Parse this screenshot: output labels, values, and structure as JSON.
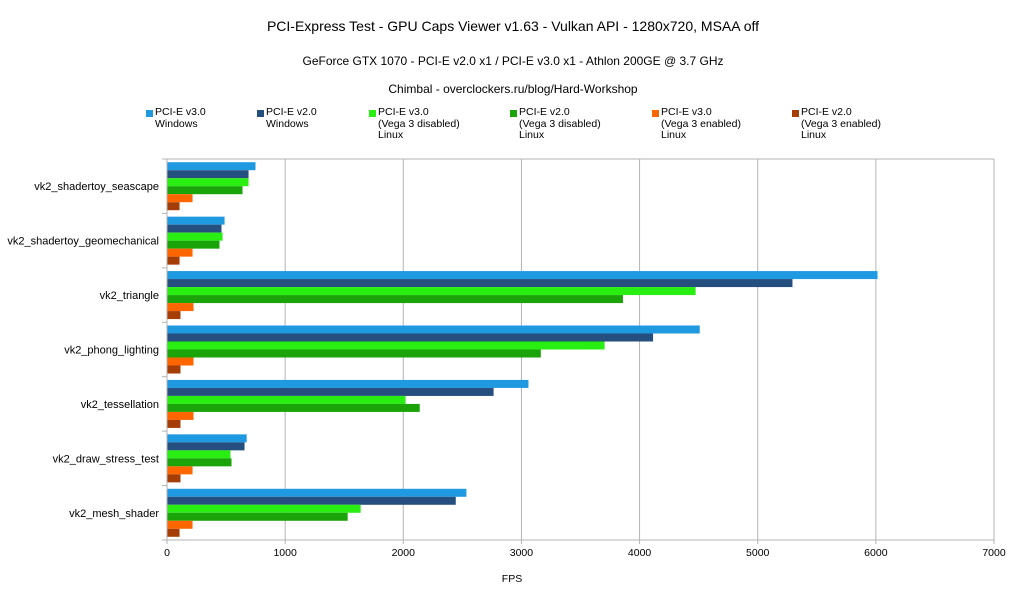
{
  "chart_data": {
    "type": "bar",
    "orientation": "horizontal",
    "title": "PCI-Express Test - GPU Caps Viewer v1.63 - Vulkan API - 1280x720, MSAA off",
    "subtitle": "GeForce GTX 1070 - PCI-E v2.0 x1 / PCI-E v3.0 x1 - Athlon 200GE @ 3.7 GHz",
    "subtitle2": "Chimbal - overclockers.ru/blog/Hard-Workshop",
    "xlabel": "FPS",
    "ylabel": "",
    "xlim": [
      0,
      7000
    ],
    "xticks": [
      "0",
      "1000",
      "2000",
      "3000",
      "4000",
      "5000",
      "6000",
      "7000"
    ],
    "xtick_values": [
      0,
      1000,
      2000,
      3000,
      4000,
      5000,
      6000,
      7000
    ],
    "grid": "vertical",
    "legend_position": "top",
    "categories": [
      "vk2_shadertoy_seascape",
      "vk2_shadertoy_geomechanical",
      "vk2_triangle",
      "vk2_phong_lighting",
      "vk2_tessellation",
      "vk2_draw_stress_test",
      "vk2_mesh_shader"
    ],
    "series": [
      {
        "name": "PCI-E v3.0\nWindows",
        "color": "#1f99e0",
        "values": [
          745,
          483,
          6010,
          4505,
          3055,
          670,
          2530
        ]
      },
      {
        "name": "PCI-E v2.0\nWindows",
        "color": "#254f7f",
        "values": [
          686,
          457,
          5290,
          4110,
          2760,
          652,
          2440
        ]
      },
      {
        "name": "PCI-E v3.0\n(Vega 3 disabled)\nLinux",
        "color": "#28ee12",
        "values": [
          686,
          466,
          4470,
          3700,
          2015,
          533,
          1635
        ]
      },
      {
        "name": "PCI-E v2.0\n(Vega 3 disabled)\nLinux",
        "color": "#1ba30a",
        "values": [
          635,
          440,
          3855,
          3160,
          2135,
          542,
          1525
        ]
      },
      {
        "name": "PCI-E v3.0\n(Vega 3 enabled)\nLinux",
        "color": "#ff6600",
        "values": [
          212,
          212,
          220,
          220,
          220,
          212,
          212
        ]
      },
      {
        "name": "PCI-E v2.0\n(Vega 3 enabled)\nLinux",
        "color": "#a43e06",
        "values": [
          102,
          102,
          110,
          110,
          110,
          110,
          102
        ]
      }
    ]
  }
}
